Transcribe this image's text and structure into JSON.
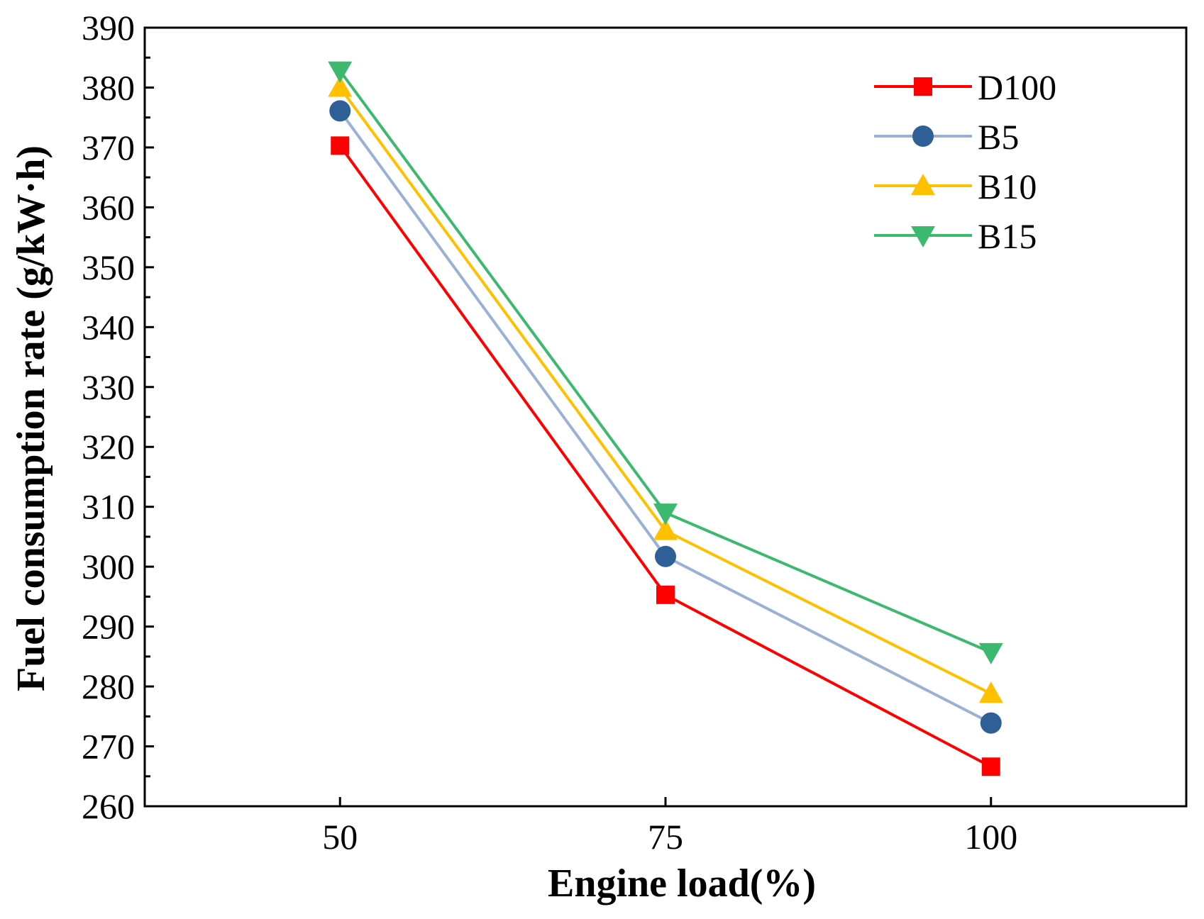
{
  "chart_data": {
    "type": "line",
    "title": "",
    "xlabel": "Engine load(%)",
    "ylabel": "Fuel consumption rate (g/kW·h)",
    "x": [
      50,
      75,
      100
    ],
    "xlim": [
      35,
      115
    ],
    "ylim": [
      260,
      390
    ],
    "xticks": [
      50,
      75,
      100
    ],
    "yticks": [
      260,
      270,
      280,
      290,
      300,
      310,
      320,
      330,
      340,
      350,
      360,
      370,
      380,
      390
    ],
    "grid": false,
    "legend_position": "top-right",
    "series": [
      {
        "name": "D100",
        "values": [
          370.3,
          295.3,
          266.6
        ],
        "color": "#ff0000",
        "marker": "square"
      },
      {
        "name": "B5",
        "values": [
          376.1,
          301.7,
          273.9
        ],
        "color": "#2e5f97",
        "line_color": "#9ab0d4",
        "marker": "circle"
      },
      {
        "name": "B10",
        "values": [
          380.0,
          306.0,
          278.8
        ],
        "color": "#ffc000",
        "marker": "triangle-up"
      },
      {
        "name": "B15",
        "values": [
          382.8,
          309.0,
          285.7
        ],
        "color": "#3cb96e",
        "marker": "triangle-down"
      }
    ]
  }
}
